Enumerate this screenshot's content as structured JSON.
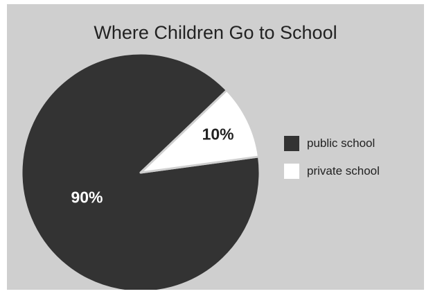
{
  "chart_data": {
    "type": "pie",
    "title": "Where Children Go to School",
    "categories": [
      "public school",
      "private school"
    ],
    "values": [
      90,
      10
    ],
    "slice_labels": [
      "90%",
      "10%"
    ],
    "colors": [
      "#333333",
      "#ffffff"
    ],
    "label_colors": [
      "#ffffff",
      "#222222"
    ],
    "background": "#cfcfcf",
    "legend_position": "right"
  }
}
